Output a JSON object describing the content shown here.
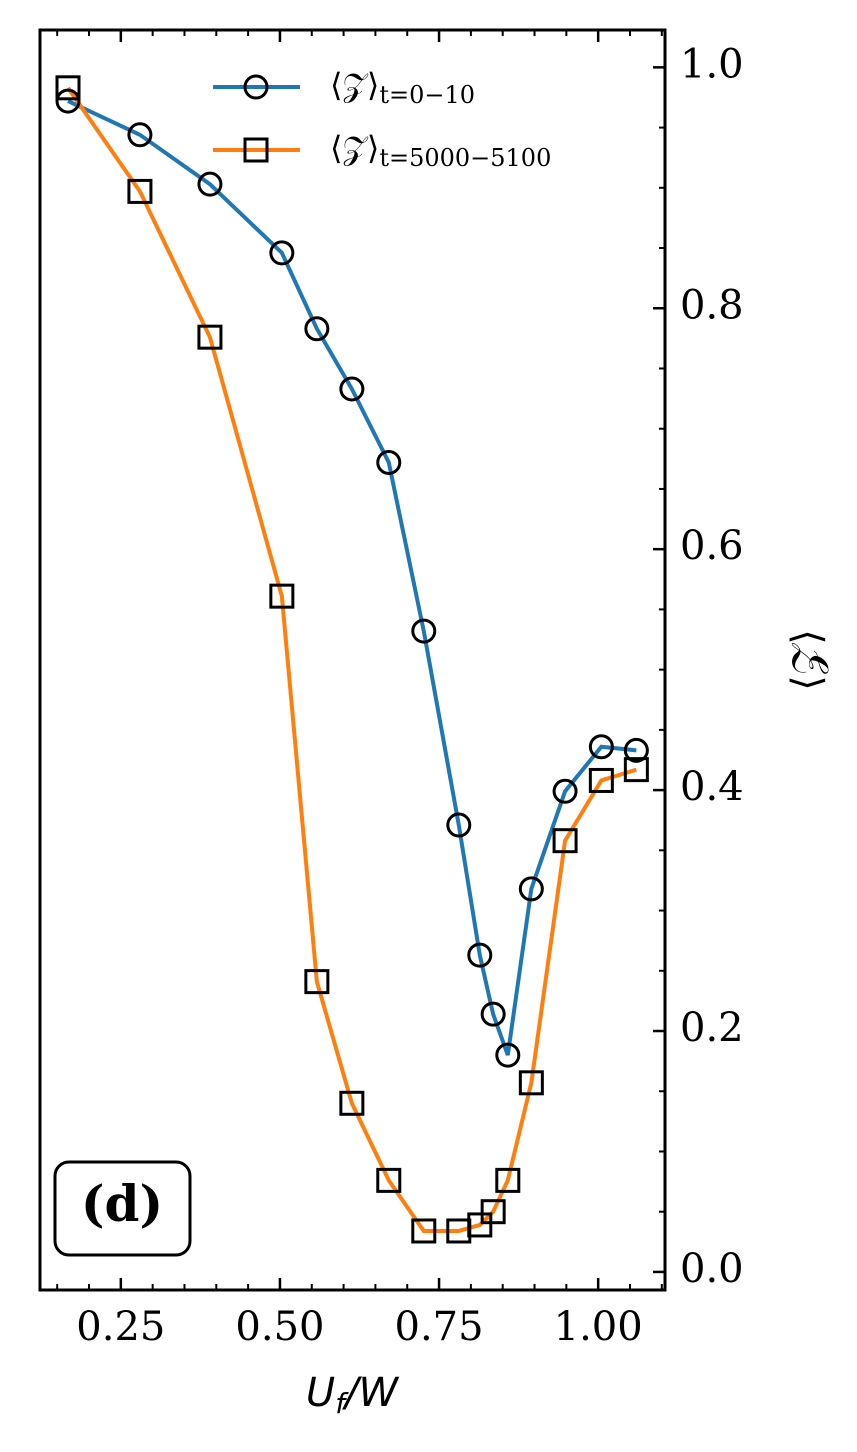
{
  "chart_data": {
    "type": "line",
    "annotation": "(d)",
    "xlabel_parts": [
      "U",
      "f",
      "/W"
    ],
    "ylabel": "⟨𝒵⟩",
    "x": [
      0.167,
      0.28,
      0.39,
      0.503,
      0.558,
      0.613,
      0.671,
      0.726,
      0.781,
      0.814,
      0.835,
      0.858,
      0.895,
      0.948,
      1.005,
      1.06
    ],
    "series": [
      {
        "name": "⟨𝒵⟩",
        "subscript": "t=0−10",
        "color": "#1f77b4",
        "marker": "circle",
        "values": [
          0.972,
          0.944,
          0.903,
          0.846,
          0.783,
          0.733,
          0.672,
          0.532,
          0.371,
          0.263,
          0.214,
          0.18,
          0.318,
          0.399,
          0.436,
          0.433
        ]
      },
      {
        "name": "⟨𝒵⟩",
        "subscript": "t=5000−5100",
        "color": "#ff7f0e",
        "marker": "square",
        "values": [
          0.983,
          0.897,
          0.776,
          0.561,
          0.241,
          0.14,
          0.076,
          0.034,
          0.034,
          0.039,
          0.05,
          0.076,
          0.157,
          0.358,
          0.408,
          0.417
        ]
      }
    ],
    "marker_edge": "#000000",
    "xlim": [
      0.123,
      1.105
    ],
    "ylim": [
      -0.015,
      1.031
    ],
    "xticks": [
      0.25,
      {
        "value": 0.5,
        "label": "0.50"
      },
      0.75,
      {
        "value": 1,
        "label": "1.00"
      }
    ],
    "yticks": [
      {
        "value": 0,
        "label": "0.0"
      },
      0.2,
      0.4,
      0.6,
      0.8,
      {
        "value": 1,
        "label": "1.0"
      }
    ],
    "xminorticks": [
      0.15,
      0.2,
      0.3,
      0.35,
      0.4,
      0.45,
      0.55,
      0.6,
      0.65,
      0.7,
      0.8,
      0.85,
      0.9,
      0.95,
      1.05,
      1.1
    ],
    "yminorticks": [
      0.05,
      0.1,
      0.15,
      0.25,
      0.3,
      0.35,
      0.45,
      0.5,
      0.55,
      0.65,
      0.7,
      0.75,
      0.85,
      0.9,
      0.95
    ],
    "legend": "upper right"
  }
}
